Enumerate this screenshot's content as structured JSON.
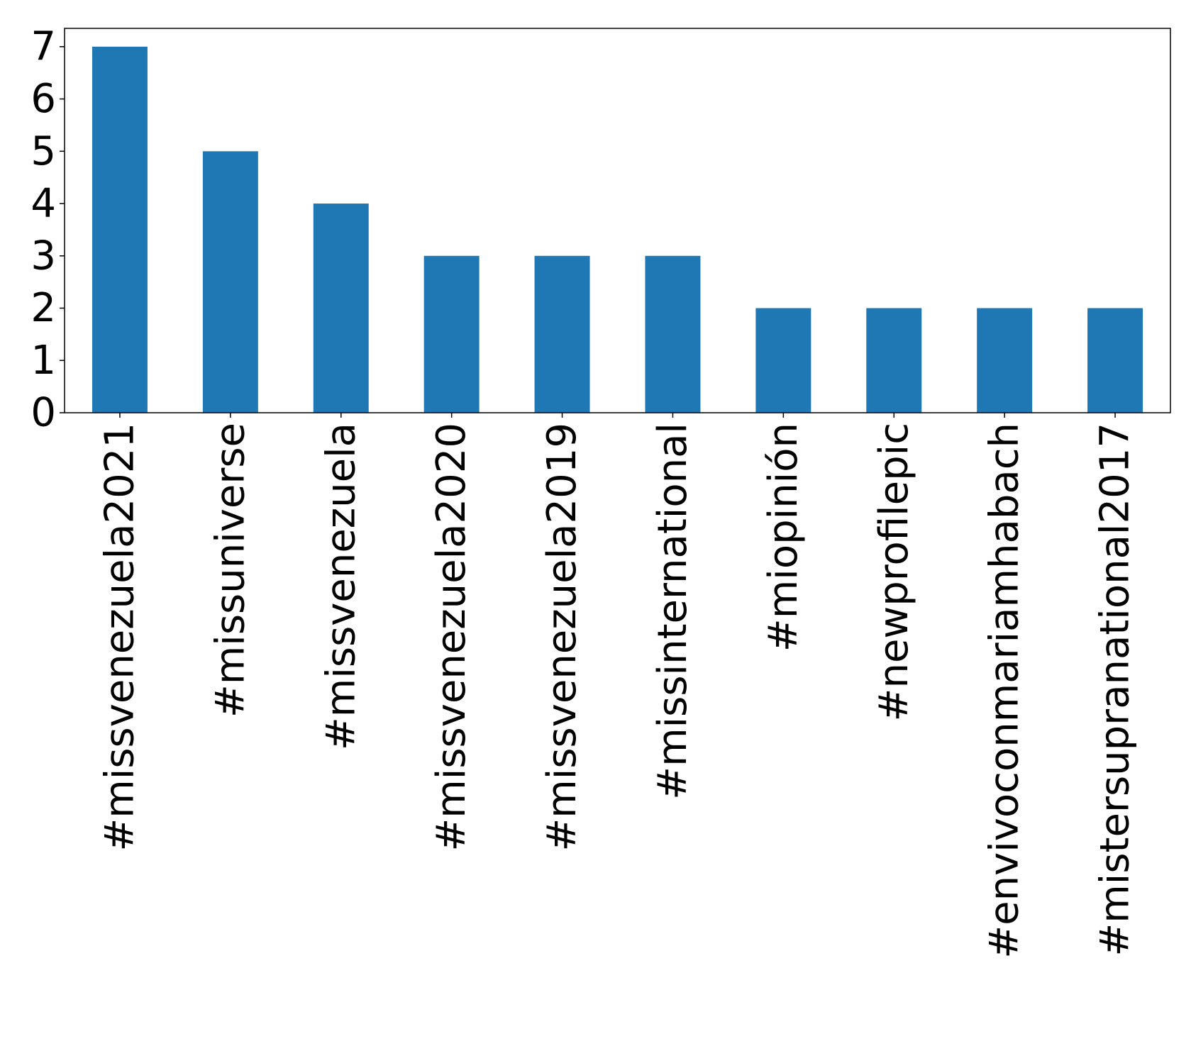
{
  "chart_data": {
    "type": "bar",
    "title": "",
    "xlabel": "",
    "ylabel": "",
    "categories": [
      "#missvenezuela2021",
      "#missuniverse",
      "#missvenezuela",
      "#missvenezuela2020",
      "#missvenezuela2019",
      "#missinternational",
      "#miopinión",
      "#newprofilepic",
      "#envivoconmariamhabach",
      "#mistersupranational2017"
    ],
    "values": [
      7,
      5,
      4,
      3,
      3,
      3,
      2,
      2,
      2,
      2
    ],
    "ylim": [
      0,
      7.35
    ],
    "yticks": [
      0,
      1,
      2,
      3,
      4,
      5,
      6,
      7
    ],
    "bar_color": "#1f77b4",
    "grid": false,
    "legend": "none"
  }
}
